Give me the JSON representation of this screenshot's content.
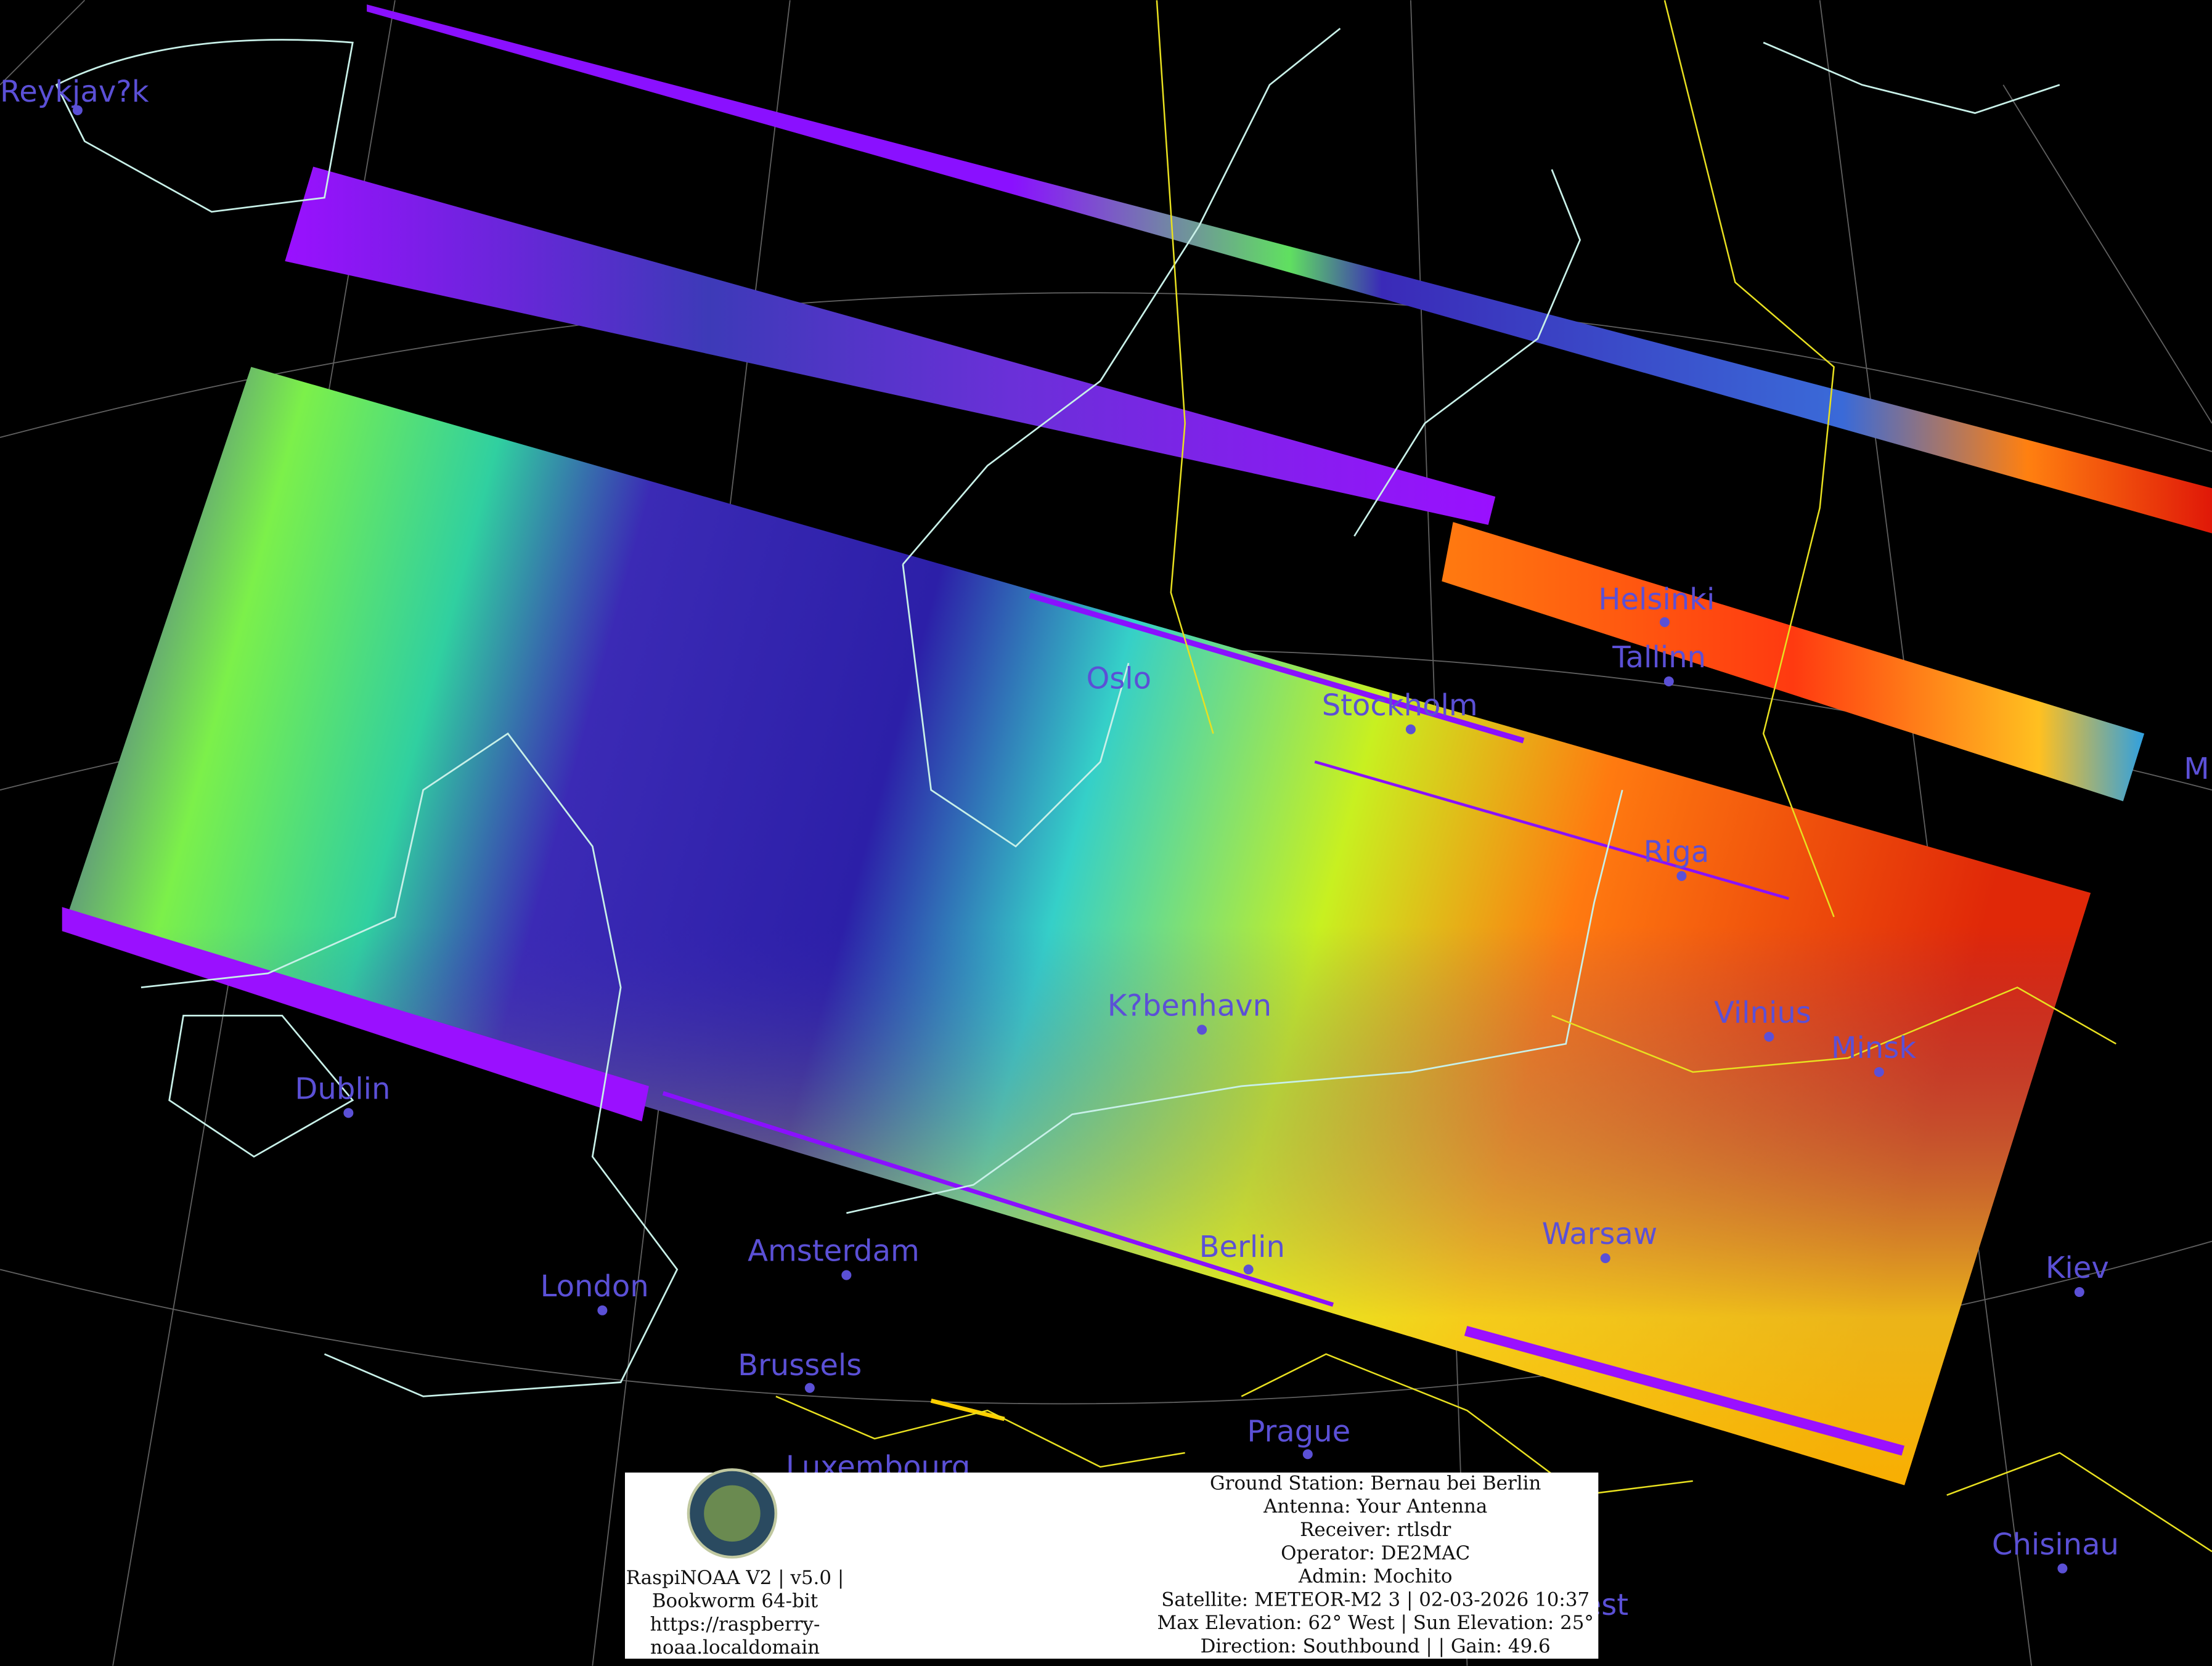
{
  "map": {
    "cities": [
      "Reykjav?k",
      "Helsinki",
      "Tallinn",
      "Oslo",
      "Stockholm",
      "M",
      "Riga",
      "K?benhavn",
      "Vilnius",
      "Minsk",
      "Dublin",
      "Amsterdam",
      "Berlin",
      "Warsaw",
      "Kiev",
      "London",
      "Brussels",
      "Prague",
      "Luxembourg",
      "Chisinau",
      "Budapest"
    ]
  },
  "info_box": {
    "left_lines": [
      "RaspiNOAA V2 | v5.0 |",
      "Bookworm 64-bit",
      "https://raspberry-",
      "noaa.localdomain"
    ],
    "right_lines": [
      "Ground Station: Bernau bei Berlin",
      "Antenna: Your Antenna",
      "Receiver: rtlsdr",
      "Operator: DE2MAC",
      "Admin: Mochito",
      "Satellite: METEOR-M2 3 | 02-03-2026 10:37",
      "Max Elevation: 62° West | Sun Elevation: 25°",
      "Direction: Southbound | | Gain: 49.6"
    ]
  }
}
